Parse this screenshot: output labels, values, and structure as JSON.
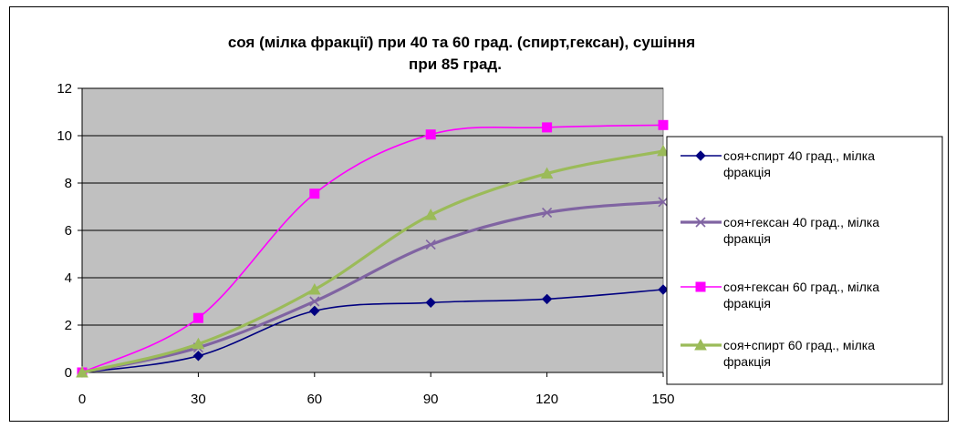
{
  "chart_data": {
    "type": "line",
    "title_lines": [
      "соя (мілка фракції) при 40 та 60 град. (спирт,гексан),  сушіння",
      "при 85 град."
    ],
    "x": [
      0,
      30,
      60,
      90,
      120,
      150
    ],
    "xlim": [
      0,
      150
    ],
    "ylim": [
      0,
      12
    ],
    "y_ticks": [
      0,
      2,
      4,
      6,
      8,
      10,
      12
    ],
    "grid": "horizontal",
    "plot_background": "#c0c0c0",
    "legend_position": "right",
    "series": [
      {
        "name_lines": [
          "соя+спирт 40 град., мілка",
          "фракція"
        ],
        "values": [
          0,
          0.7,
          2.6,
          2.95,
          3.1,
          3.5
        ],
        "color": "#000080",
        "marker": "diamond"
      },
      {
        "name_lines": [
          "соя+гексан 40 град., мілка",
          "фракція"
        ],
        "values": [
          0,
          1.05,
          3.0,
          5.4,
          6.75,
          7.2
        ],
        "color": "#8064a2",
        "marker": "x"
      },
      {
        "name_lines": [
          "соя+гексан 60 град., мілка",
          "фракція"
        ],
        "values": [
          0,
          2.3,
          7.55,
          10.05,
          10.35,
          10.45
        ],
        "color": "#ff00ff",
        "marker": "square"
      },
      {
        "name_lines": [
          "соя+спирт 60 град., мілка",
          "фракція"
        ],
        "values": [
          0,
          1.2,
          3.5,
          6.65,
          8.4,
          9.35
        ],
        "color": "#9bbb59",
        "marker": "triangle"
      }
    ]
  }
}
